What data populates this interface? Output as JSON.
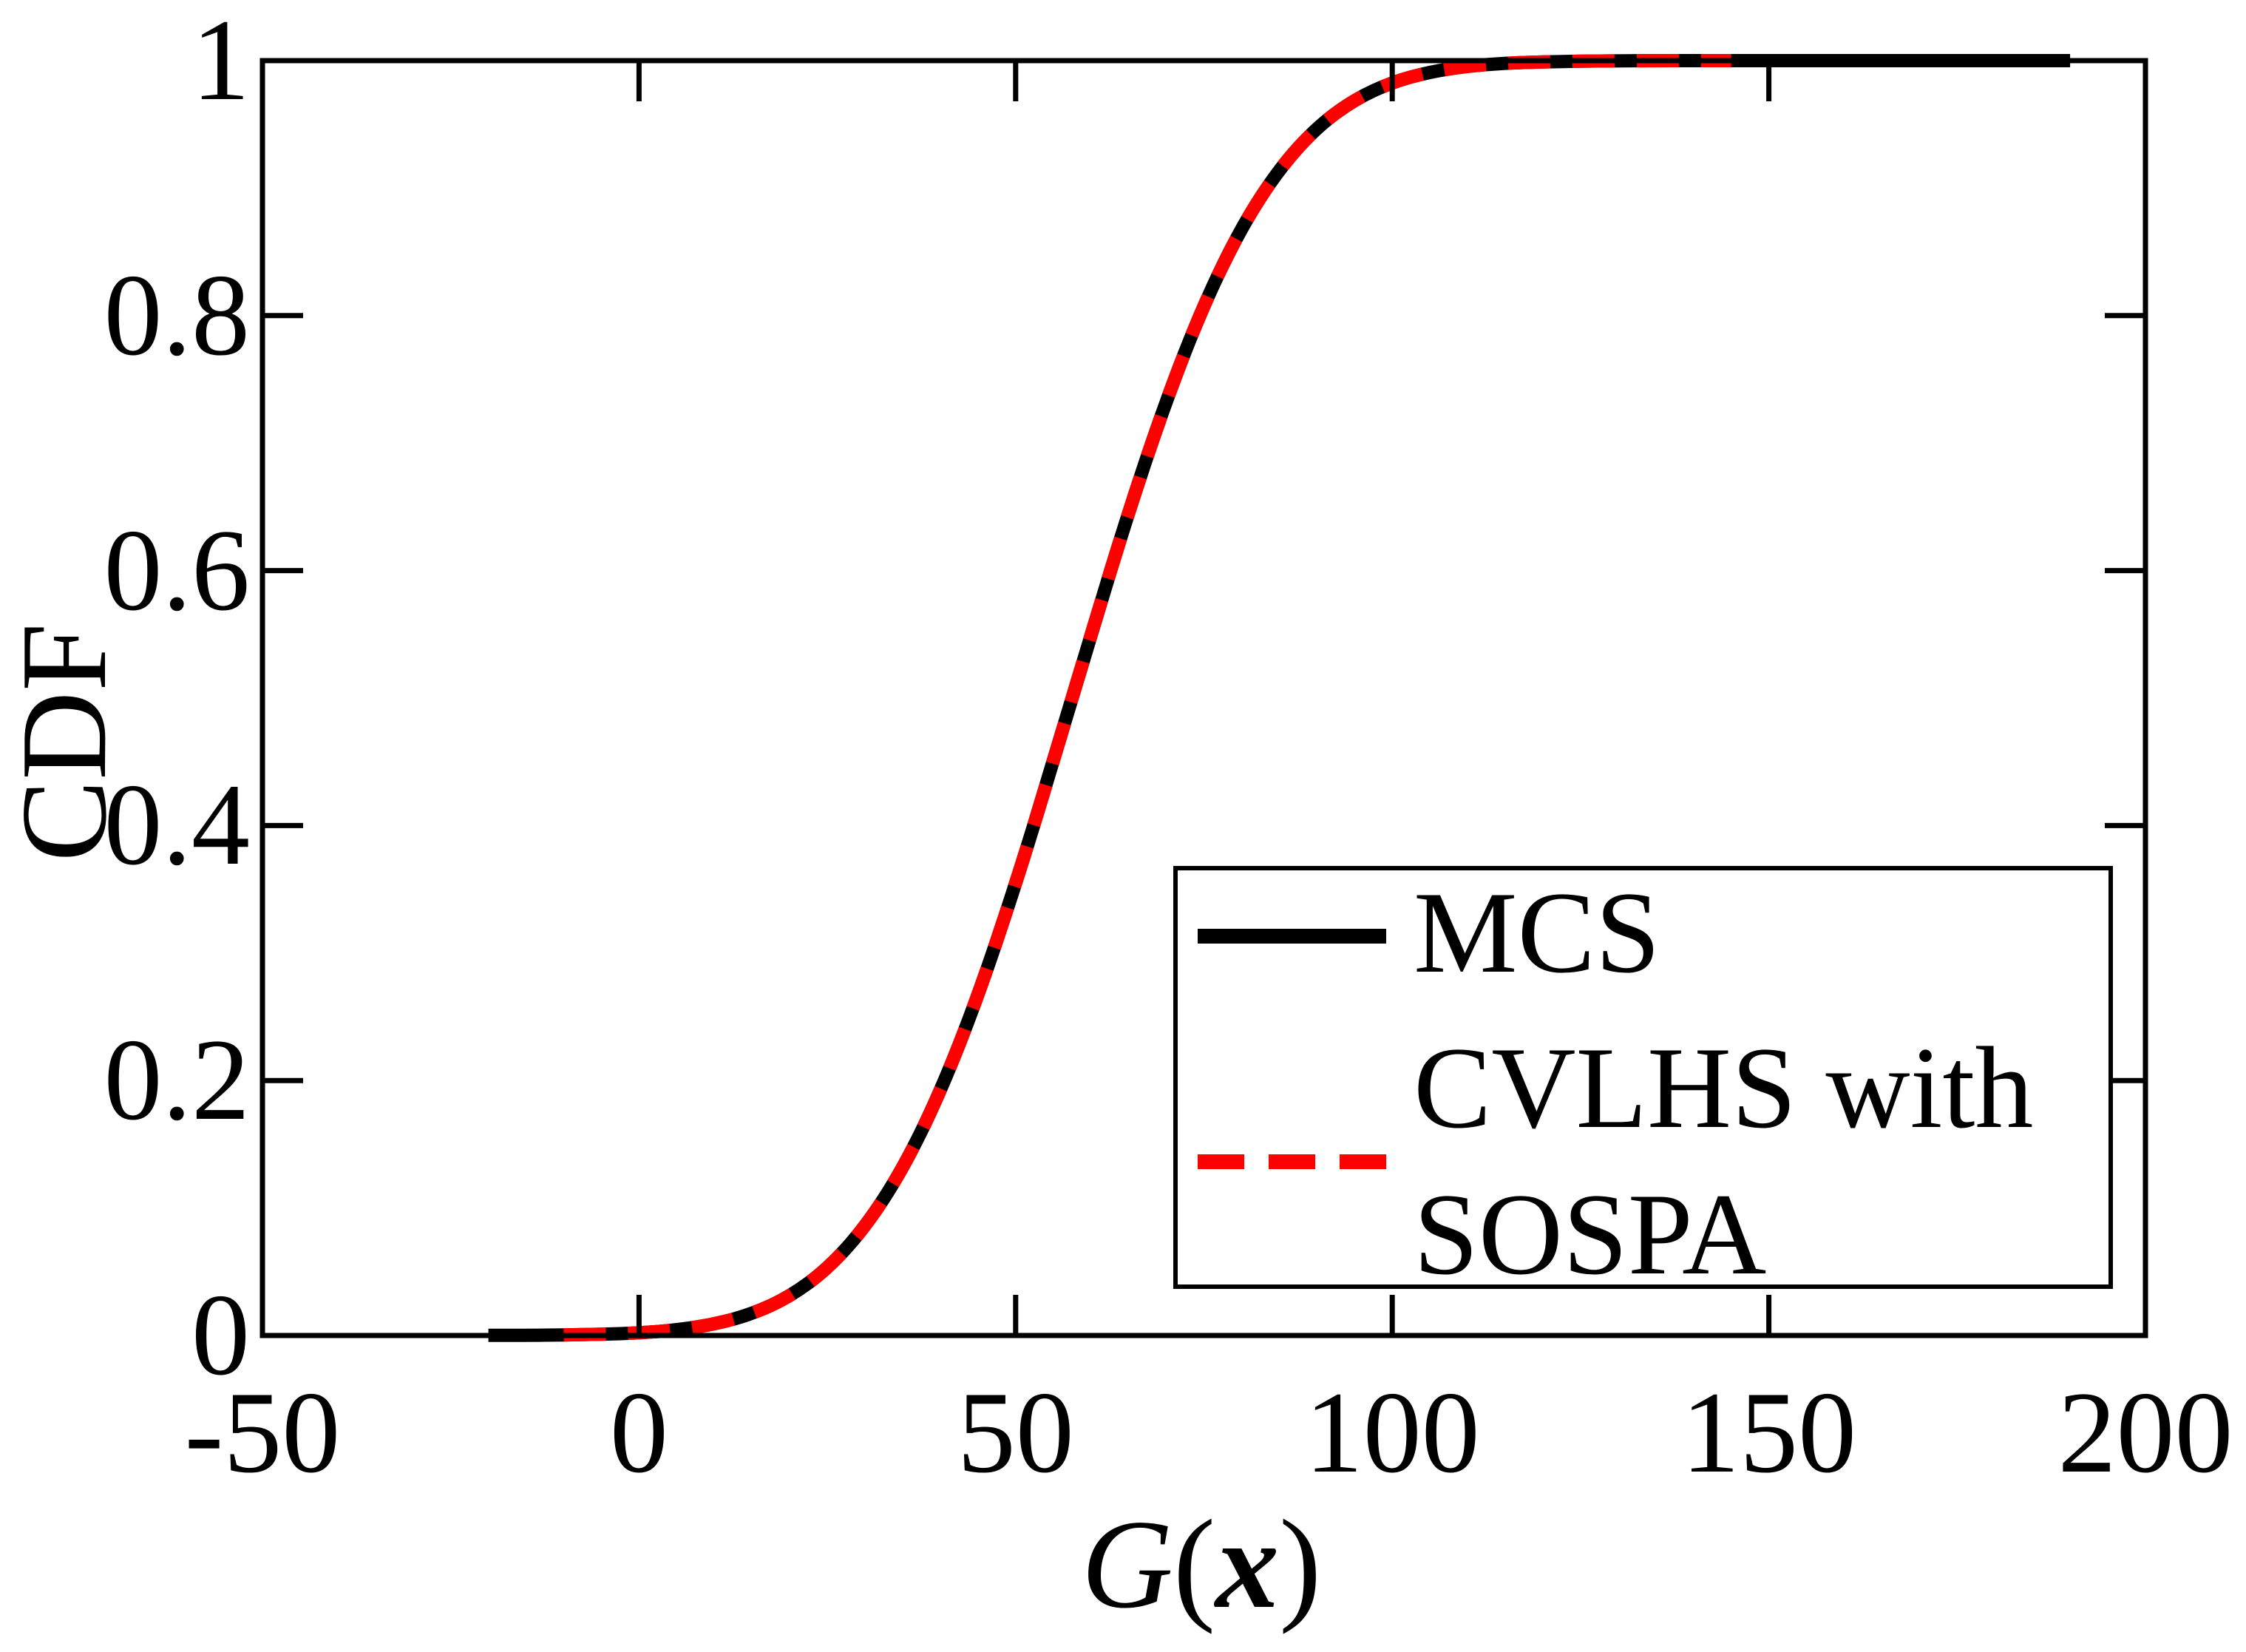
{
  "chart_data": {
    "type": "line",
    "title": "",
    "xlabel": "G(x)",
    "xlabel_parts": {
      "func": "G",
      "open": "(",
      "arg": "x",
      "close": ")"
    },
    "ylabel": "CDF",
    "xlim": [
      -50,
      200
    ],
    "ylim": [
      0,
      1
    ],
    "xticks": [
      -50,
      0,
      50,
      100,
      150,
      200
    ],
    "xtick_labels": [
      "-50",
      "0",
      "50",
      "100",
      "150",
      "200"
    ],
    "yticks": [
      0,
      0.2,
      0.4,
      0.6,
      0.8,
      1
    ],
    "ytick_labels": [
      "0",
      "0.2",
      "0.4",
      "0.6",
      "0.8",
      "1"
    ],
    "grid": false,
    "background": "#ffffff",
    "axis_color": "#000000",
    "legend_position": "lower-right",
    "legend_labels": [
      [
        "MCS"
      ],
      [
        "CVLHS with",
        "SOSPA"
      ]
    ],
    "series": [
      {
        "name": "MCS",
        "color": "#000000",
        "line_style": "solid",
        "line_width": 18,
        "x": [
          -20,
          -15,
          -10,
          -5,
          0,
          5,
          10,
          15,
          20,
          25,
          30,
          35,
          40,
          45,
          50,
          55,
          60,
          65,
          70,
          75,
          80,
          85,
          90,
          95,
          100,
          105,
          110,
          115,
          120,
          125,
          130,
          135,
          140,
          145,
          150,
          155,
          160,
          165,
          170,
          175,
          180,
          185,
          190
        ],
        "y": [
          0.0001,
          0.0001,
          0.0004,
          0.0009,
          0.002,
          0.0043,
          0.0088,
          0.0168,
          0.0304,
          0.0521,
          0.0846,
          0.1303,
          0.1908,
          0.266,
          0.3538,
          0.4503,
          0.5497,
          0.6462,
          0.734,
          0.8092,
          0.8697,
          0.9154,
          0.9479,
          0.9696,
          0.9832,
          0.9912,
          0.9957,
          0.998,
          0.9991,
          0.9996,
          0.9999,
          1,
          1,
          1,
          1,
          1,
          1,
          1,
          1,
          1,
          1,
          1,
          1
        ]
      },
      {
        "name": "CVLHS with SOSPA",
        "color": "#ff0000",
        "line_style": "dashed",
        "line_width": 18,
        "x": [
          -10,
          -5,
          0,
          5,
          10,
          15,
          20,
          25,
          30,
          35,
          40,
          45,
          50,
          55,
          60,
          65,
          70,
          75,
          80,
          85,
          90,
          95,
          100,
          105,
          110,
          115,
          120,
          125,
          130,
          135,
          140,
          145
        ],
        "y": [
          0.0004,
          0.0009,
          0.002,
          0.0043,
          0.0088,
          0.0168,
          0.0304,
          0.0521,
          0.0846,
          0.1303,
          0.1908,
          0.266,
          0.3538,
          0.4503,
          0.5497,
          0.6462,
          0.734,
          0.8092,
          0.8697,
          0.9154,
          0.9479,
          0.9696,
          0.9832,
          0.9912,
          0.9957,
          0.998,
          0.9991,
          0.9996,
          0.9999,
          1,
          1,
          1
        ]
      }
    ]
  }
}
